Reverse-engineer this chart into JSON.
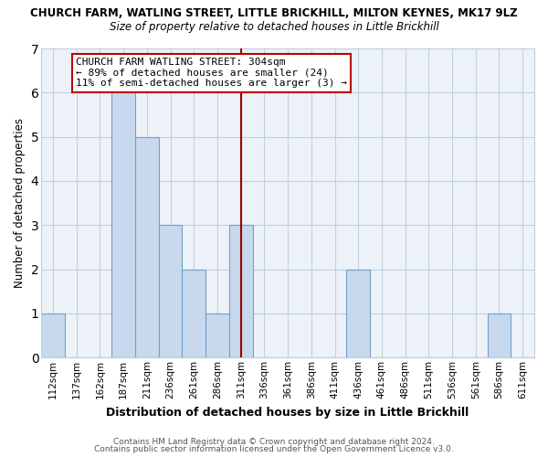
{
  "title_line1": "CHURCH FARM, WATLING STREET, LITTLE BRICKHILL, MILTON KEYNES, MK17 9LZ",
  "title_line2": "Size of property relative to detached houses in Little Brickhill",
  "xlabel": "Distribution of detached houses by size in Little Brickhill",
  "ylabel": "Number of detached properties",
  "categories": [
    "112sqm",
    "137sqm",
    "162sqm",
    "187sqm",
    "211sqm",
    "236sqm",
    "261sqm",
    "286sqm",
    "311sqm",
    "336sqm",
    "361sqm",
    "386sqm",
    "411sqm",
    "436sqm",
    "461sqm",
    "486sqm",
    "511sqm",
    "536sqm",
    "561sqm",
    "586sqm",
    "611sqm"
  ],
  "values": [
    1,
    0,
    0,
    6,
    5,
    3,
    2,
    1,
    3,
    0,
    0,
    0,
    0,
    2,
    0,
    0,
    0,
    0,
    0,
    1,
    0
  ],
  "bar_color": "#c8d9ee",
  "bar_edge_color": "#6fa0c8",
  "vline_x_index": 8,
  "vline_color": "#9b0000",
  "ylim": [
    0,
    7
  ],
  "yticks": [
    0,
    1,
    2,
    3,
    4,
    5,
    6,
    7
  ],
  "annotation_title": "CHURCH FARM WATLING STREET: 304sqm",
  "annotation_line2": "← 89% of detached houses are smaller (24)",
  "annotation_line3": "11% of semi-detached houses are larger (3) →",
  "annotation_box_facecolor": "#ffffff",
  "annotation_box_edgecolor": "#c00000",
  "grid_color": "#c0cfe0",
  "plot_bg_color": "#edf2f9",
  "fig_bg_color": "#ffffff",
  "footer_line1": "Contains HM Land Registry data © Crown copyright and database right 2024.",
  "footer_line2": "Contains public sector information licensed under the Open Government Licence v3.0."
}
